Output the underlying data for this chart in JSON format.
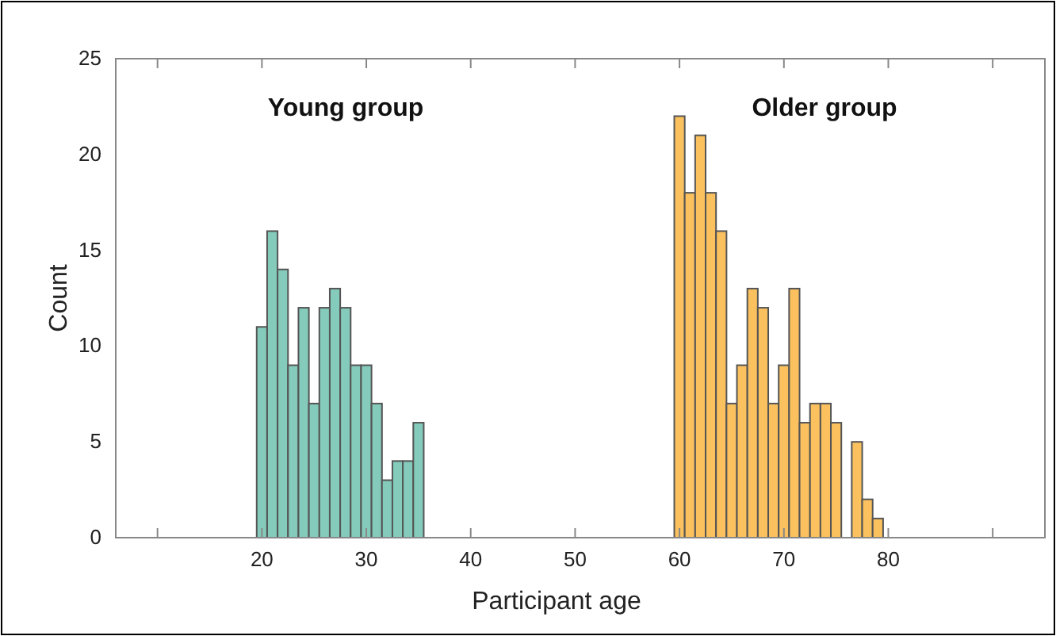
{
  "chart_data": {
    "type": "bar",
    "xlabel": "Participant age",
    "ylabel": "Count",
    "annotations": [
      "Young group",
      "Older group"
    ],
    "xlim": [
      6,
      95
    ],
    "xticks": [
      {
        "value": 10,
        "label": null
      },
      20,
      30,
      40,
      50,
      60,
      70,
      80,
      {
        "value": 90,
        "label": null
      }
    ],
    "ylim": [
      0,
      25
    ],
    "yticks": [
      0,
      5,
      10,
      15,
      20,
      25
    ],
    "series": [
      {
        "color": "#84cbbb",
        "x": [
          20,
          21,
          22,
          23,
          24,
          25,
          26,
          27,
          28,
          29,
          30,
          31,
          32,
          33,
          34,
          35
        ],
        "values": [
          11,
          16,
          14,
          9,
          12,
          7,
          12,
          13,
          12,
          9,
          9,
          7,
          3,
          4,
          4,
          6
        ]
      },
      {
        "color": "#fbc15f",
        "x": [
          60,
          61,
          62,
          63,
          64,
          65,
          66,
          67,
          68,
          69,
          70,
          71,
          72,
          73,
          74,
          75,
          76,
          77,
          78,
          79
        ],
        "values": [
          22,
          18,
          21,
          18,
          16,
          7,
          9,
          13,
          12,
          7,
          9,
          13,
          6,
          7,
          7,
          6,
          0,
          5,
          2,
          1
        ]
      }
    ]
  }
}
